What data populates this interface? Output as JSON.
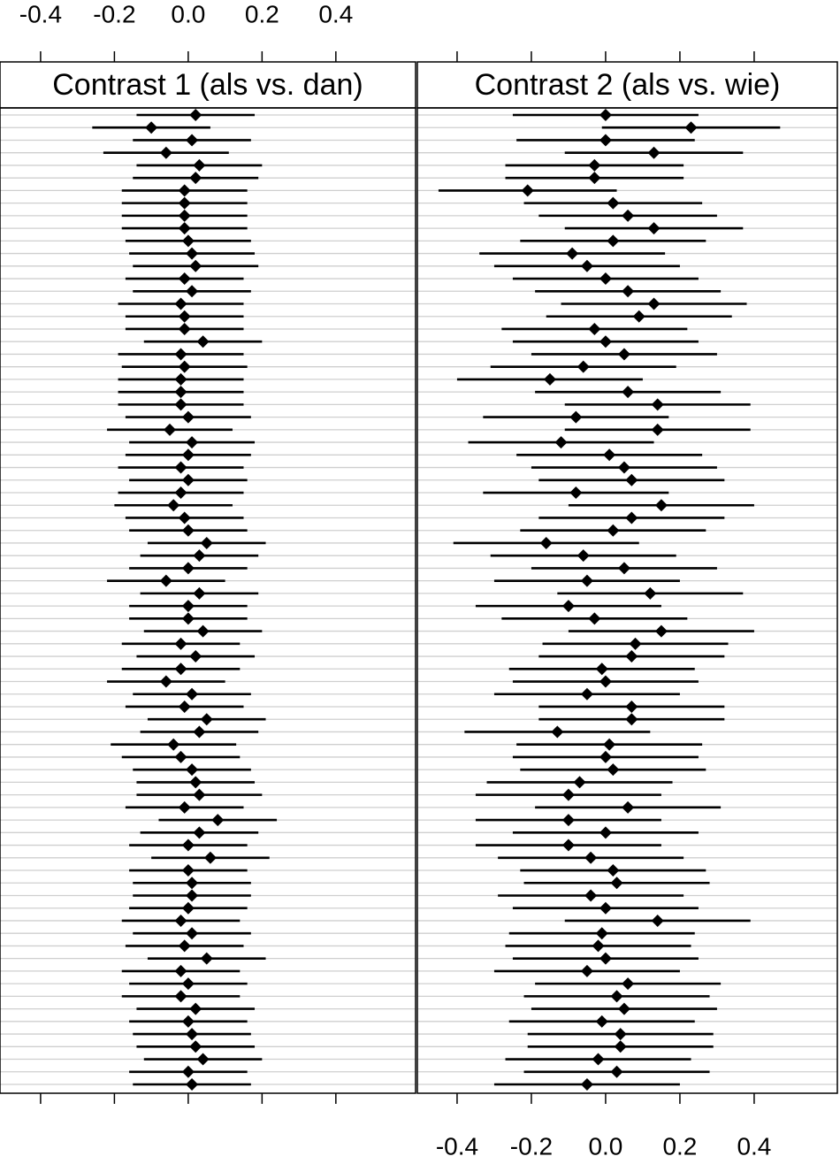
{
  "chart_data": [
    {
      "type": "dotplot",
      "title": "Contrast 1 (als vs. dan)",
      "xaxis_side": "top",
      "grid": true,
      "color": "#000000",
      "xlim": [
        -0.51,
        0.616
      ],
      "xticks": [
        -0.4,
        -0.2,
        {
          "value": 0,
          "label": "0.0"
        },
        0.2,
        0.4
      ],
      "values": [
        0.02,
        -0.1,
        0.01,
        -0.06,
        0.03,
        0.02,
        -0.01,
        -0.01,
        -0.01,
        -0.01,
        0,
        0.01,
        0.02,
        -0.01,
        0.01,
        -0.02,
        -0.01,
        -0.01,
        0.04,
        -0.02,
        -0.01,
        -0.02,
        -0.02,
        -0.02,
        0,
        -0.05,
        0.01,
        0,
        -0.02,
        0,
        -0.02,
        -0.04,
        -0.01,
        0,
        0.05,
        0.03,
        0,
        -0.06,
        0.03,
        0,
        0,
        0.04,
        -0.02,
        0.02,
        -0.02,
        -0.06,
        0.01,
        -0.01,
        0.05,
        0.03,
        -0.04,
        -0.02,
        0.01,
        0.02,
        0.03,
        -0.01,
        0.08,
        0.03,
        0,
        0.06,
        0,
        0.01,
        0.01,
        0,
        -0.02,
        0.01,
        -0.01,
        0.05,
        -0.02,
        0,
        -0.02,
        0.02,
        0,
        0.01,
        0.02,
        0.04,
        0,
        0.01
      ],
      "errors": [
        0.16,
        0.16,
        0.16,
        0.17,
        0.17,
        0.17,
        0.17,
        0.17,
        0.17,
        0.17,
        0.17,
        0.17,
        0.17,
        0.16,
        0.16,
        0.17,
        0.16,
        0.16,
        0.16,
        0.17,
        0.17,
        0.17,
        0.17,
        0.17,
        0.17,
        0.17,
        0.17,
        0.17,
        0.17,
        0.16,
        0.17,
        0.16,
        0.16,
        0.16,
        0.16,
        0.16,
        0.16,
        0.16,
        0.16,
        0.16,
        0.16,
        0.16,
        0.16,
        0.16,
        0.16,
        0.16,
        0.16,
        0.16,
        0.16,
        0.16,
        0.17,
        0.16,
        0.16,
        0.16,
        0.17,
        0.16,
        0.16,
        0.16,
        0.16,
        0.16,
        0.16,
        0.16,
        0.16,
        0.16,
        0.16,
        0.16,
        0.16,
        0.16,
        0.16,
        0.16,
        0.16,
        0.16,
        0.16,
        0.16,
        0.16,
        0.16,
        0.16,
        0.16
      ]
    },
    {
      "type": "dotplot",
      "title": "Contrast 2 (als vs. wie)",
      "xaxis_side": "bottom",
      "grid": true,
      "color": "#000000",
      "xlim": [
        -0.507,
        0.624
      ],
      "xticks": [
        -0.4,
        -0.2,
        {
          "value": 0,
          "label": "0.0"
        },
        0.2,
        0.4
      ],
      "values": [
        0,
        0.23,
        0,
        0.13,
        -0.03,
        -0.03,
        -0.21,
        0.02,
        0.06,
        0.13,
        0.02,
        -0.09,
        -0.05,
        0,
        0.06,
        0.13,
        0.09,
        -0.03,
        0,
        0.05,
        -0.06,
        -0.15,
        0.06,
        0.14,
        -0.08,
        0.14,
        -0.12,
        0.01,
        0.05,
        0.07,
        -0.08,
        0.15,
        0.07,
        0.02,
        -0.16,
        -0.06,
        0.05,
        -0.05,
        0.12,
        -0.1,
        -0.03,
        0.15,
        0.08,
        0.07,
        -0.01,
        0,
        -0.05,
        0.07,
        0.07,
        -0.13,
        0.01,
        0,
        0.02,
        -0.07,
        -0.1,
        0.06,
        -0.1,
        0,
        -0.1,
        -0.04,
        0.02,
        0.03,
        -0.04,
        0,
        0.14,
        -0.01,
        -0.02,
        0,
        -0.05,
        0.06,
        0.03,
        0.05,
        -0.01,
        0.04,
        0.04,
        -0.02,
        0.03,
        -0.05
      ],
      "errors": [
        0.25,
        0.24,
        0.24,
        0.24,
        0.24,
        0.24,
        0.24,
        0.24,
        0.24,
        0.24,
        0.25,
        0.25,
        0.25,
        0.25,
        0.25,
        0.25,
        0.25,
        0.25,
        0.25,
        0.25,
        0.25,
        0.25,
        0.25,
        0.25,
        0.25,
        0.25,
        0.25,
        0.25,
        0.25,
        0.25,
        0.25,
        0.25,
        0.25,
        0.25,
        0.25,
        0.25,
        0.25,
        0.25,
        0.25,
        0.25,
        0.25,
        0.25,
        0.25,
        0.25,
        0.25,
        0.25,
        0.25,
        0.25,
        0.25,
        0.25,
        0.25,
        0.25,
        0.25,
        0.25,
        0.25,
        0.25,
        0.25,
        0.25,
        0.25,
        0.25,
        0.25,
        0.25,
        0.25,
        0.25,
        0.25,
        0.25,
        0.25,
        0.25,
        0.25,
        0.25,
        0.25,
        0.25,
        0.25,
        0.25,
        0.25,
        0.25,
        0.25,
        0.25
      ]
    }
  ]
}
